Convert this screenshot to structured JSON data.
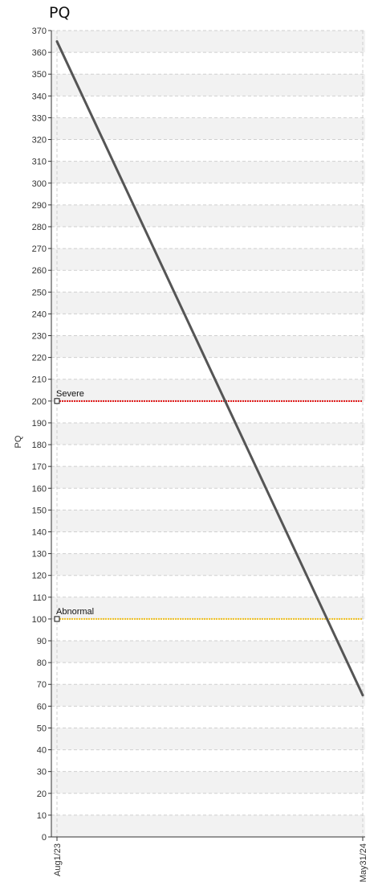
{
  "chart_data": {
    "type": "line",
    "title": "PQ",
    "xlabel": "",
    "ylabel": "PQ",
    "x_tick_labels": [
      "Aug1/23",
      "May31/24"
    ],
    "y_ticks": [
      0,
      10,
      20,
      30,
      40,
      50,
      60,
      70,
      80,
      90,
      100,
      110,
      120,
      130,
      140,
      150,
      160,
      170,
      180,
      190,
      200,
      210,
      220,
      230,
      240,
      250,
      260,
      270,
      280,
      290,
      300,
      310,
      320,
      330,
      340,
      350,
      360,
      370
    ],
    "ylim": [
      0,
      370
    ],
    "grid": true,
    "series": [
      {
        "values": [
          {
            "x": "Aug1/23",
            "y": 365
          },
          {
            "x": "May31/24",
            "y": 65
          }
        ],
        "color": "#555555"
      }
    ],
    "thresholds": [
      {
        "label": "Severe",
        "value": 200,
        "color": "#e01010"
      },
      {
        "label": "Abnormal",
        "value": 100,
        "color": "#f0c020"
      }
    ]
  }
}
